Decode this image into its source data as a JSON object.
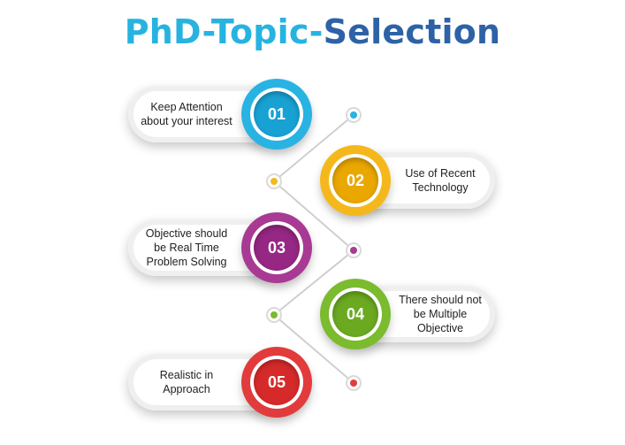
{
  "title": {
    "part1": "PhD-",
    "part2": "Topic-",
    "part3": "Selection"
  },
  "colors": {
    "blue": "#29b3e3",
    "yellow": "#f5b81c",
    "purple": "#a83a94",
    "green": "#7bbb2e",
    "red": "#e23b3b",
    "title_dark": "#2e62a6"
  },
  "steps": [
    {
      "number": "01",
      "text": "Keep Attention about your interest"
    },
    {
      "number": "02",
      "text": "Use of Recent Technology"
    },
    {
      "number": "03",
      "text": "Objective should be Real Time Problem Solving"
    },
    {
      "number": "04",
      "text": "There should not be Multiple Objective"
    },
    {
      "number": "05",
      "text": "Realistic in Approach"
    }
  ]
}
